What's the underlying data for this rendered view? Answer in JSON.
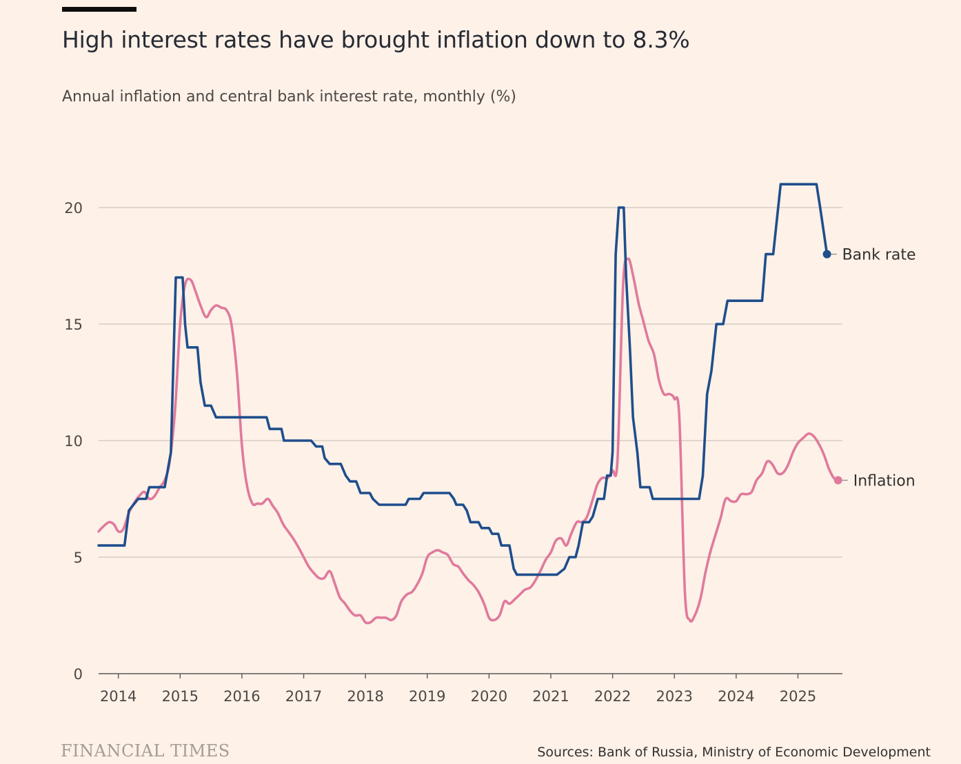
{
  "header": {
    "title": "High interest rates have brought inflation down to 8.3%",
    "subtitle": "Annual inflation and central bank interest rate, monthly (%)"
  },
  "footer": {
    "brand": "FINANCIAL TIMES",
    "source": "Sources: Bank of Russia, Ministry of Economic Development"
  },
  "colors": {
    "background": "#fdf1e8",
    "bank_rate": "#1f4e8c",
    "inflation": "#e07a9c",
    "grid": "#cfc6bf"
  },
  "chart_data": {
    "type": "line",
    "title": "High interest rates have brought inflation down to 8.3%",
    "subtitle": "Annual inflation and central bank interest rate, monthly (%)",
    "xlabel": "",
    "ylabel": "%",
    "xlim": [
      2013.68,
      2025.72
    ],
    "ylim": [
      0,
      20
    ],
    "x_ticks": [
      2014,
      2015,
      2016,
      2017,
      2018,
      2019,
      2020,
      2021,
      2022,
      2023,
      2024,
      2025
    ],
    "x_tick_labels": [
      "2014",
      "2015",
      "2016",
      "2017",
      "2018",
      "2019",
      "2020",
      "2021",
      "2022",
      "2023",
      "2024",
      "2025"
    ],
    "y_ticks": [
      0,
      5,
      10,
      15,
      20
    ],
    "y_tick_labels": [
      "0",
      "5",
      "10",
      "15",
      "20"
    ],
    "grid": true,
    "series": [
      {
        "name": "Bank rate",
        "label": "Bank rate",
        "color": "#1f4e8c",
        "step": true,
        "points": [
          [
            2013.68,
            5.5
          ],
          [
            2014.1,
            5.5
          ],
          [
            2014.17,
            7.0
          ],
          [
            2014.32,
            7.5
          ],
          [
            2014.45,
            7.5
          ],
          [
            2014.5,
            8.0
          ],
          [
            2014.75,
            8.0
          ],
          [
            2014.85,
            9.5
          ],
          [
            2014.93,
            17.0
          ],
          [
            2015.04,
            17.0
          ],
          [
            2015.08,
            15.0
          ],
          [
            2015.12,
            14.0
          ],
          [
            2015.28,
            14.0
          ],
          [
            2015.33,
            12.5
          ],
          [
            2015.4,
            11.5
          ],
          [
            2015.5,
            11.5
          ],
          [
            2015.58,
            11.0
          ],
          [
            2016.4,
            11.0
          ],
          [
            2016.45,
            10.5
          ],
          [
            2016.64,
            10.5
          ],
          [
            2016.68,
            10.0
          ],
          [
            2017.12,
            10.0
          ],
          [
            2017.2,
            9.75
          ],
          [
            2017.3,
            9.75
          ],
          [
            2017.34,
            9.25
          ],
          [
            2017.42,
            9.0
          ],
          [
            2017.6,
            9.0
          ],
          [
            2017.68,
            8.5
          ],
          [
            2017.75,
            8.25
          ],
          [
            2017.85,
            8.25
          ],
          [
            2017.92,
            7.75
          ],
          [
            2018.07,
            7.75
          ],
          [
            2018.12,
            7.5
          ],
          [
            2018.22,
            7.25
          ],
          [
            2018.65,
            7.25
          ],
          [
            2018.7,
            7.5
          ],
          [
            2018.88,
            7.5
          ],
          [
            2018.94,
            7.75
          ],
          [
            2019.36,
            7.75
          ],
          [
            2019.43,
            7.5
          ],
          [
            2019.47,
            7.25
          ],
          [
            2019.58,
            7.25
          ],
          [
            2019.64,
            7.0
          ],
          [
            2019.7,
            6.5
          ],
          [
            2019.83,
            6.5
          ],
          [
            2019.88,
            6.25
          ],
          [
            2020.0,
            6.25
          ],
          [
            2020.05,
            6.0
          ],
          [
            2020.15,
            6.0
          ],
          [
            2020.2,
            5.5
          ],
          [
            2020.33,
            5.5
          ],
          [
            2020.4,
            4.5
          ],
          [
            2020.45,
            4.25
          ],
          [
            2021.1,
            4.25
          ],
          [
            2021.22,
            4.5
          ],
          [
            2021.3,
            5.0
          ],
          [
            2021.4,
            5.0
          ],
          [
            2021.45,
            5.5
          ],
          [
            2021.52,
            6.5
          ],
          [
            2021.62,
            6.5
          ],
          [
            2021.68,
            6.75
          ],
          [
            2021.76,
            7.5
          ],
          [
            2021.86,
            7.5
          ],
          [
            2021.91,
            8.5
          ],
          [
            2021.97,
            8.5
          ],
          [
            2022.0,
            9.5
          ],
          [
            2022.05,
            18.0
          ],
          [
            2022.1,
            20.0
          ],
          [
            2022.18,
            20.0
          ],
          [
            2022.22,
            17.0
          ],
          [
            2022.28,
            14.0
          ],
          [
            2022.33,
            11.0
          ],
          [
            2022.4,
            9.5
          ],
          [
            2022.45,
            8.0
          ],
          [
            2022.6,
            8.0
          ],
          [
            2022.65,
            7.5
          ],
          [
            2023.4,
            7.5
          ],
          [
            2023.46,
            8.5
          ],
          [
            2023.53,
            12.0
          ],
          [
            2023.6,
            13.0
          ],
          [
            2023.68,
            15.0
          ],
          [
            2023.79,
            15.0
          ],
          [
            2023.86,
            16.0
          ],
          [
            2024.42,
            16.0
          ],
          [
            2024.48,
            18.0
          ],
          [
            2024.6,
            18.0
          ],
          [
            2024.72,
            21.0
          ],
          [
            2025.3,
            21.0
          ],
          [
            2025.36,
            20.0
          ],
          [
            2025.47,
            18.0
          ]
        ],
        "last_value": 18.0
      },
      {
        "name": "Inflation",
        "label": "Inflation",
        "color": "#e07a9c",
        "step": false,
        "points": [
          [
            2013.68,
            6.1
          ],
          [
            2013.75,
            6.3
          ],
          [
            2013.85,
            6.5
          ],
          [
            2013.93,
            6.4
          ],
          [
            2014.0,
            6.1
          ],
          [
            2014.08,
            6.2
          ],
          [
            2014.17,
            6.9
          ],
          [
            2014.25,
            7.3
          ],
          [
            2014.33,
            7.6
          ],
          [
            2014.42,
            7.8
          ],
          [
            2014.5,
            7.5
          ],
          [
            2014.58,
            7.6
          ],
          [
            2014.67,
            8.0
          ],
          [
            2014.75,
            8.3
          ],
          [
            2014.83,
            9.1
          ],
          [
            2014.92,
            11.4
          ],
          [
            2015.0,
            15.0
          ],
          [
            2015.08,
            16.7
          ],
          [
            2015.17,
            16.9
          ],
          [
            2015.25,
            16.4
          ],
          [
            2015.33,
            15.8
          ],
          [
            2015.42,
            15.3
          ],
          [
            2015.5,
            15.6
          ],
          [
            2015.58,
            15.8
          ],
          [
            2015.67,
            15.7
          ],
          [
            2015.75,
            15.6
          ],
          [
            2015.83,
            15.0
          ],
          [
            2015.92,
            12.9
          ],
          [
            2016.0,
            9.8
          ],
          [
            2016.08,
            8.1
          ],
          [
            2016.17,
            7.3
          ],
          [
            2016.25,
            7.3
          ],
          [
            2016.33,
            7.3
          ],
          [
            2016.42,
            7.5
          ],
          [
            2016.5,
            7.2
          ],
          [
            2016.58,
            6.9
          ],
          [
            2016.67,
            6.4
          ],
          [
            2016.75,
            6.1
          ],
          [
            2016.83,
            5.8
          ],
          [
            2016.92,
            5.4
          ],
          [
            2017.0,
            5.0
          ],
          [
            2017.08,
            4.6
          ],
          [
            2017.17,
            4.3
          ],
          [
            2017.25,
            4.1
          ],
          [
            2017.33,
            4.1
          ],
          [
            2017.42,
            4.4
          ],
          [
            2017.5,
            3.9
          ],
          [
            2017.58,
            3.3
          ],
          [
            2017.67,
            3.0
          ],
          [
            2017.75,
            2.7
          ],
          [
            2017.83,
            2.5
          ],
          [
            2017.92,
            2.5
          ],
          [
            2018.0,
            2.2
          ],
          [
            2018.08,
            2.2
          ],
          [
            2018.17,
            2.4
          ],
          [
            2018.25,
            2.4
          ],
          [
            2018.33,
            2.4
          ],
          [
            2018.42,
            2.3
          ],
          [
            2018.5,
            2.5
          ],
          [
            2018.58,
            3.1
          ],
          [
            2018.67,
            3.4
          ],
          [
            2018.75,
            3.5
          ],
          [
            2018.83,
            3.8
          ],
          [
            2018.92,
            4.3
          ],
          [
            2019.0,
            5.0
          ],
          [
            2019.08,
            5.2
          ],
          [
            2019.17,
            5.3
          ],
          [
            2019.25,
            5.2
          ],
          [
            2019.33,
            5.1
          ],
          [
            2019.42,
            4.7
          ],
          [
            2019.5,
            4.6
          ],
          [
            2019.58,
            4.3
          ],
          [
            2019.67,
            4.0
          ],
          [
            2019.75,
            3.8
          ],
          [
            2019.83,
            3.5
          ],
          [
            2019.92,
            3.0
          ],
          [
            2020.0,
            2.4
          ],
          [
            2020.08,
            2.3
          ],
          [
            2020.17,
            2.5
          ],
          [
            2020.25,
            3.1
          ],
          [
            2020.33,
            3.0
          ],
          [
            2020.42,
            3.2
          ],
          [
            2020.5,
            3.4
          ],
          [
            2020.58,
            3.6
          ],
          [
            2020.67,
            3.7
          ],
          [
            2020.75,
            4.0
          ],
          [
            2020.83,
            4.4
          ],
          [
            2020.92,
            4.9
          ],
          [
            2021.0,
            5.2
          ],
          [
            2021.08,
            5.7
          ],
          [
            2021.17,
            5.8
          ],
          [
            2021.25,
            5.5
          ],
          [
            2021.33,
            6.0
          ],
          [
            2021.42,
            6.5
          ],
          [
            2021.5,
            6.5
          ],
          [
            2021.58,
            6.7
          ],
          [
            2021.67,
            7.4
          ],
          [
            2021.75,
            8.1
          ],
          [
            2021.83,
            8.4
          ],
          [
            2021.92,
            8.4
          ],
          [
            2022.0,
            8.7
          ],
          [
            2022.08,
            9.2
          ],
          [
            2022.17,
            16.7
          ],
          [
            2022.25,
            17.8
          ],
          [
            2022.33,
            17.1
          ],
          [
            2022.42,
            15.9
          ],
          [
            2022.5,
            15.1
          ],
          [
            2022.58,
            14.3
          ],
          [
            2022.67,
            13.7
          ],
          [
            2022.75,
            12.6
          ],
          [
            2022.83,
            12.0
          ],
          [
            2022.92,
            12.0
          ],
          [
            2023.0,
            11.8
          ],
          [
            2023.08,
            11.0
          ],
          [
            2023.17,
            3.5
          ],
          [
            2023.25,
            2.3
          ],
          [
            2023.33,
            2.5
          ],
          [
            2023.42,
            3.2
          ],
          [
            2023.5,
            4.3
          ],
          [
            2023.58,
            5.2
          ],
          [
            2023.67,
            6.0
          ],
          [
            2023.75,
            6.7
          ],
          [
            2023.83,
            7.5
          ],
          [
            2023.92,
            7.4
          ],
          [
            2024.0,
            7.4
          ],
          [
            2024.08,
            7.7
          ],
          [
            2024.17,
            7.7
          ],
          [
            2024.25,
            7.8
          ],
          [
            2024.33,
            8.3
          ],
          [
            2024.42,
            8.6
          ],
          [
            2024.5,
            9.1
          ],
          [
            2024.58,
            9.0
          ],
          [
            2024.67,
            8.6
          ],
          [
            2024.75,
            8.6
          ],
          [
            2024.83,
            8.9
          ],
          [
            2024.92,
            9.5
          ],
          [
            2025.0,
            9.9
          ],
          [
            2025.08,
            10.1
          ],
          [
            2025.17,
            10.3
          ],
          [
            2025.25,
            10.2
          ],
          [
            2025.33,
            9.9
          ],
          [
            2025.42,
            9.4
          ],
          [
            2025.5,
            8.8
          ],
          [
            2025.58,
            8.4
          ],
          [
            2025.65,
            8.3
          ]
        ],
        "last_value": 8.3
      }
    ]
  }
}
